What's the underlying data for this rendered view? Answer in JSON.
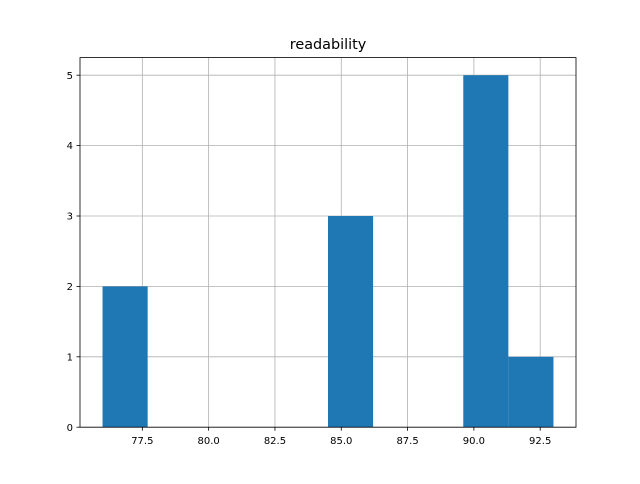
{
  "chart_data": {
    "type": "bar",
    "subtype": "histogram",
    "title": "readability",
    "xlabel": "",
    "ylabel": "",
    "xlim": [
      75.15,
      93.85
    ],
    "ylim": [
      0,
      5.25
    ],
    "grid": true,
    "bar_color": "#1f77b4",
    "bins": [
      {
        "x0": 76.0,
        "x1": 77.7,
        "count": 2
      },
      {
        "x0": 77.7,
        "x1": 79.4,
        "count": 0
      },
      {
        "x0": 79.4,
        "x1": 81.1,
        "count": 0
      },
      {
        "x0": 81.1,
        "x1": 82.8,
        "count": 0
      },
      {
        "x0": 82.8,
        "x1": 84.5,
        "count": 0
      },
      {
        "x0": 84.5,
        "x1": 86.2,
        "count": 3
      },
      {
        "x0": 86.2,
        "x1": 87.9,
        "count": 0
      },
      {
        "x0": 87.9,
        "x1": 89.6,
        "count": 0
      },
      {
        "x0": 89.6,
        "x1": 91.3,
        "count": 5
      },
      {
        "x0": 91.3,
        "x1": 93.0,
        "count": 1
      }
    ],
    "x_ticks": [
      77.5,
      80.0,
      82.5,
      85.0,
      87.5,
      90.0,
      92.5
    ],
    "x_tick_labels": [
      "77.5",
      "80.0",
      "82.5",
      "85.0",
      "87.5",
      "90.0",
      "92.5"
    ],
    "y_ticks": [
      0,
      1,
      2,
      3,
      4,
      5
    ],
    "y_tick_labels": [
      "0",
      "1",
      "2",
      "3",
      "4",
      "5"
    ]
  }
}
